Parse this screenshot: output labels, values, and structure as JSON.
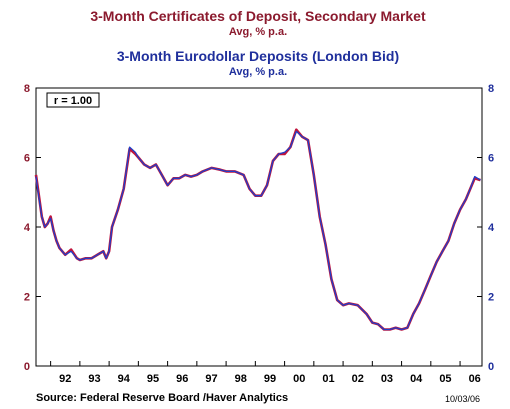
{
  "chart_data": {
    "type": "line",
    "titles": [
      {
        "title": "3-Month Certificates of Deposit, Secondary Market",
        "subtitle": "Avg, % p.a."
      },
      {
        "title": "3-Month Eurodollar Deposits (London Bid)",
        "subtitle": "Avg, % p.a."
      }
    ],
    "y_left": {
      "min": 0,
      "max": 8,
      "ticks": [
        "0",
        "2",
        "4",
        "6",
        "8"
      ]
    },
    "y_right": {
      "min": 0,
      "max": 8,
      "ticks": [
        "0",
        "2",
        "4",
        "6",
        "8"
      ]
    },
    "x_range": [
      1991.5,
      2006.75
    ],
    "x_ticks": [
      {
        "label": "92",
        "value": 1992.5
      },
      {
        "label": "93",
        "value": 1993.5
      },
      {
        "label": "94",
        "value": 1994.5
      },
      {
        "label": "95",
        "value": 1995.5
      },
      {
        "label": "96",
        "value": 1996.5
      },
      {
        "label": "97",
        "value": 1997.5
      },
      {
        "label": "98",
        "value": 1998.5
      },
      {
        "label": "99",
        "value": 1999.5
      },
      {
        "label": "00",
        "value": 2000.5
      },
      {
        "label": "01",
        "value": 2001.5
      },
      {
        "label": "02",
        "value": 2002.5
      },
      {
        "label": "03",
        "value": 2003.5
      },
      {
        "label": "04",
        "value": 2004.5
      },
      {
        "label": "05",
        "value": 2005.5
      },
      {
        "label": "06",
        "value": 2006.5
      }
    ],
    "annotation": "r = 1.00",
    "series": [
      {
        "color": "#c0143c",
        "axis": "left",
        "x": [
          1991.5,
          1991.6,
          1991.7,
          1991.8,
          1991.9,
          1992.0,
          1992.1,
          1992.2,
          1992.3,
          1992.5,
          1992.7,
          1992.9,
          1993.0,
          1993.2,
          1993.4,
          1993.6,
          1993.8,
          1993.9,
          1994.0,
          1994.1,
          1994.3,
          1994.5,
          1994.7,
          1994.9,
          1995.0,
          1995.2,
          1995.4,
          1995.6,
          1995.8,
          1996.0,
          1996.2,
          1996.4,
          1996.6,
          1996.8,
          1997.0,
          1997.2,
          1997.5,
          1997.8,
          1998.0,
          1998.3,
          1998.6,
          1998.8,
          1999.0,
          1999.2,
          1999.4,
          1999.6,
          1999.8,
          2000.0,
          2000.2,
          2000.4,
          2000.6,
          2000.8,
          2001.0,
          2001.2,
          2001.4,
          2001.6,
          2001.8,
          2002.0,
          2002.2,
          2002.5,
          2002.8,
          2003.0,
          2003.2,
          2003.4,
          2003.6,
          2003.8,
          2004.0,
          2004.2,
          2004.4,
          2004.6,
          2004.8,
          2005.0,
          2005.2,
          2005.4,
          2005.6,
          2005.8,
          2006.0,
          2006.2,
          2006.35,
          2006.5,
          2006.7
        ],
        "values": [
          5.5,
          4.9,
          4.3,
          4.0,
          4.1,
          4.3,
          3.9,
          3.6,
          3.4,
          3.2,
          3.35,
          3.1,
          3.05,
          3.1,
          3.1,
          3.2,
          3.3,
          3.1,
          3.3,
          4.0,
          4.5,
          5.1,
          6.25,
          6.1,
          6.0,
          5.8,
          5.7,
          5.8,
          5.5,
          5.2,
          5.4,
          5.4,
          5.5,
          5.45,
          5.5,
          5.6,
          5.7,
          5.65,
          5.6,
          5.6,
          5.5,
          5.1,
          4.9,
          4.9,
          5.2,
          5.9,
          6.1,
          6.1,
          6.3,
          6.8,
          6.6,
          6.5,
          5.5,
          4.3,
          3.5,
          2.5,
          1.9,
          1.75,
          1.8,
          1.75,
          1.5,
          1.25,
          1.2,
          1.05,
          1.05,
          1.1,
          1.05,
          1.1,
          1.5,
          1.8,
          2.2,
          2.6,
          3.0,
          3.3,
          3.6,
          4.1,
          4.5,
          4.8,
          5.1,
          5.4,
          5.35
        ]
      },
      {
        "color": "#1f3fc8",
        "axis": "right",
        "x": [
          1991.5,
          1991.6,
          1991.7,
          1991.8,
          1991.9,
          1992.0,
          1992.1,
          1992.2,
          1992.3,
          1992.5,
          1992.7,
          1992.9,
          1993.0,
          1993.2,
          1993.4,
          1993.6,
          1993.8,
          1993.9,
          1994.0,
          1994.1,
          1994.3,
          1994.5,
          1994.7,
          1994.9,
          1995.0,
          1995.2,
          1995.4,
          1995.6,
          1995.8,
          1996.0,
          1996.2,
          1996.4,
          1996.6,
          1996.8,
          1997.0,
          1997.2,
          1997.5,
          1997.8,
          1998.0,
          1998.3,
          1998.6,
          1998.8,
          1999.0,
          1999.2,
          1999.4,
          1999.6,
          1999.8,
          2000.0,
          2000.2,
          2000.4,
          2000.6,
          2000.8,
          2001.0,
          2001.2,
          2001.4,
          2001.6,
          2001.8,
          2002.0,
          2002.2,
          2002.5,
          2002.8,
          2003.0,
          2003.2,
          2003.4,
          2003.6,
          2003.8,
          2004.0,
          2004.2,
          2004.4,
          2004.6,
          2004.8,
          2005.0,
          2005.2,
          2005.4,
          2005.6,
          2005.8,
          2006.0,
          2006.2,
          2006.35,
          2006.5,
          2006.7
        ],
        "values": [
          5.45,
          4.85,
          4.3,
          4.0,
          4.1,
          4.25,
          3.9,
          3.6,
          3.4,
          3.2,
          3.3,
          3.1,
          3.05,
          3.1,
          3.1,
          3.2,
          3.3,
          3.1,
          3.3,
          4.0,
          4.5,
          5.1,
          6.3,
          6.15,
          6.0,
          5.8,
          5.7,
          5.8,
          5.5,
          5.2,
          5.4,
          5.4,
          5.5,
          5.45,
          5.5,
          5.6,
          5.7,
          5.65,
          5.6,
          5.6,
          5.5,
          5.1,
          4.9,
          4.9,
          5.2,
          5.9,
          6.1,
          6.15,
          6.3,
          6.75,
          6.6,
          6.5,
          5.5,
          4.3,
          3.5,
          2.5,
          1.9,
          1.75,
          1.8,
          1.75,
          1.5,
          1.25,
          1.2,
          1.05,
          1.05,
          1.1,
          1.05,
          1.1,
          1.5,
          1.8,
          2.2,
          2.6,
          3.0,
          3.3,
          3.6,
          4.1,
          4.5,
          4.8,
          5.1,
          5.45,
          5.35
        ]
      }
    ]
  },
  "footer": {
    "source": "Source:  Federal Reserve Board /Haver Analytics",
    "date": "10/03/06"
  }
}
